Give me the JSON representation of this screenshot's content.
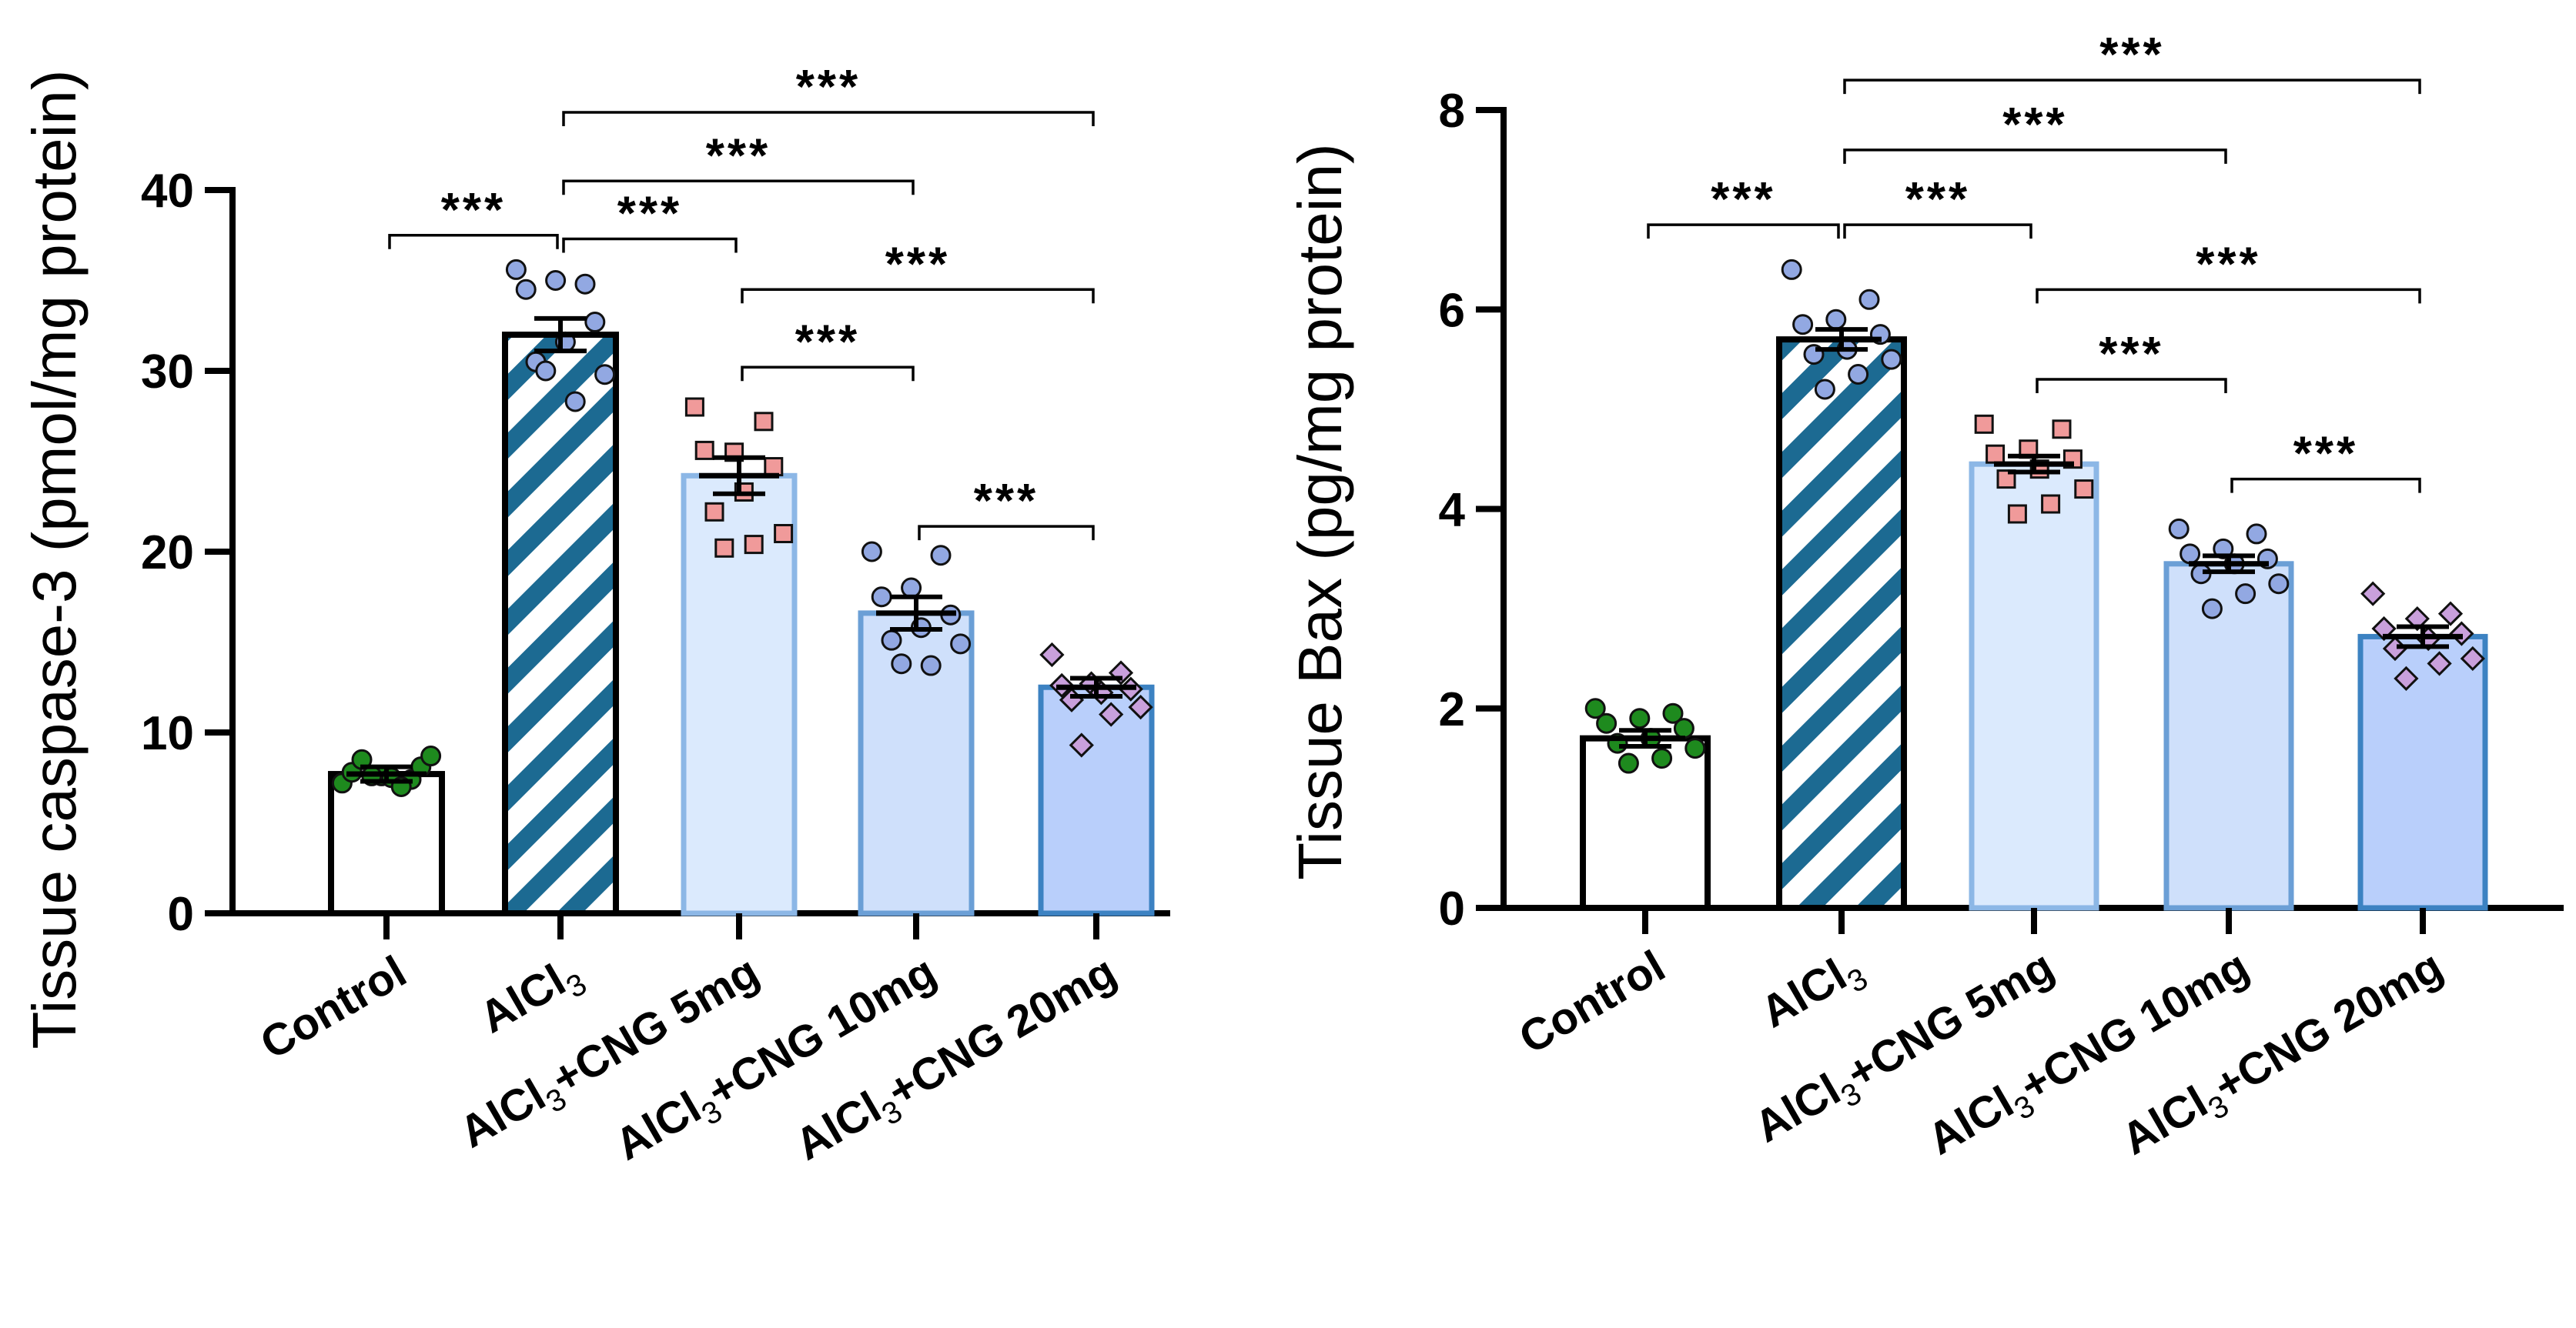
{
  "chart_data": [
    {
      "type": "bar",
      "title": "",
      "xlabel": "",
      "ylabel": "Tissue caspase-3 (pmol/mg protein)",
      "ylim": [
        0,
        40
      ],
      "yticks": [
        "0",
        "10",
        "20",
        "30",
        "40"
      ],
      "grid": false,
      "categories": [
        {
          "base": "Control",
          "sub": "",
          "rest": ""
        },
        {
          "base": "AlCl",
          "sub": "3",
          "rest": ""
        },
        {
          "base": "AlCl",
          "sub": "3",
          "rest": "+CNG 5mg"
        },
        {
          "base": "AlCl",
          "sub": "3",
          "rest": "+CNG 10mg"
        },
        {
          "base": "AlCl",
          "sub": "3",
          "rest": "+CNG 20mg"
        }
      ],
      "values": [
        7.7,
        32.0,
        24.2,
        16.6,
        12.5
      ],
      "sem": [
        0.4,
        0.9,
        1.0,
        0.9,
        0.5
      ],
      "points": [
        [
          7.2,
          7.4,
          7.6,
          7.8,
          8.1,
          7.5,
          8.5,
          8.7,
          7.0,
          7.6
        ],
        [
          35.6,
          34.8,
          35.0,
          34.5,
          32.7,
          31.6,
          30.5,
          29.8,
          28.3,
          30.0
        ],
        [
          28.0,
          27.2,
          25.5,
          25.6,
          24.7,
          23.3,
          22.2,
          21.0,
          20.4,
          20.2
        ],
        [
          20.0,
          19.8,
          18.0,
          17.5,
          16.5,
          15.8,
          15.1,
          14.9,
          13.7,
          13.8
        ],
        [
          14.3,
          13.3,
          12.7,
          12.6,
          12.4,
          12.2,
          11.8,
          11.4,
          11.0,
          9.3
        ]
      ],
      "styles": [
        {
          "fill": "#ffffff",
          "stroke": "#000000",
          "marker": "circle",
          "marker_fill": "#1e8a1e"
        },
        {
          "fill": "#ffffff",
          "stroke": "#000000",
          "hatch": "#1c6a92",
          "marker": "circle",
          "marker_fill": "#92a8e2"
        },
        {
          "fill": "#dbeafd",
          "stroke": "#8cb7e6",
          "marker": "square",
          "marker_fill": "#f09a9a"
        },
        {
          "fill": "#cfe0fb",
          "stroke": "#6b9fd6",
          "marker": "circle",
          "marker_fill": "#92a8e2"
        },
        {
          "fill": "#b9cffb",
          "stroke": "#3c82c2",
          "marker": "diamond",
          "marker_fill": "#c9a0dc"
        }
      ],
      "comparisons": [
        {
          "from": 0,
          "to": 1,
          "y": 37.5,
          "label": "***"
        },
        {
          "from": 1,
          "to": 2,
          "y": 37.3,
          "label": "***"
        },
        {
          "from": 1,
          "to": 3,
          "y": 40.5,
          "label": "***"
        },
        {
          "from": 1,
          "to": 4,
          "y": 44.3,
          "label": "***"
        },
        {
          "from": 2,
          "to": 4,
          "y": 34.5,
          "label": "***"
        },
        {
          "from": 2,
          "to": 3,
          "y": 30.2,
          "label": "***"
        },
        {
          "from": 3,
          "to": 4,
          "y": 21.4,
          "label": "***"
        }
      ]
    },
    {
      "type": "bar",
      "title": "",
      "xlabel": "",
      "ylabel": "Tissue Bax (pg/mg protein)",
      "ylim": [
        0,
        8
      ],
      "yticks": [
        "0",
        "2",
        "4",
        "6",
        "8"
      ],
      "grid": false,
      "categories": [
        {
          "base": "Control",
          "sub": "",
          "rest": ""
        },
        {
          "base": "AlCl",
          "sub": "3",
          "rest": ""
        },
        {
          "base": "AlCl",
          "sub": "3",
          "rest": "+CNG 5mg"
        },
        {
          "base": "AlCl",
          "sub": "3",
          "rest": "+CNG 10mg"
        },
        {
          "base": "AlCl",
          "sub": "3",
          "rest": "+CNG 20mg"
        }
      ],
      "values": [
        1.7,
        5.7,
        4.45,
        3.45,
        2.72
      ],
      "sem": [
        0.08,
        0.1,
        0.08,
        0.08,
        0.1
      ],
      "points": [
        [
          2.0,
          1.95,
          1.9,
          1.85,
          1.8,
          1.7,
          1.65,
          1.6,
          1.5,
          1.45
        ],
        [
          6.4,
          6.1,
          5.9,
          5.85,
          5.75,
          5.6,
          5.55,
          5.5,
          5.35,
          5.2
        ],
        [
          4.85,
          4.8,
          4.6,
          4.55,
          4.5,
          4.4,
          4.3,
          4.2,
          4.05,
          3.95
        ],
        [
          3.8,
          3.75,
          3.6,
          3.55,
          3.5,
          3.45,
          3.35,
          3.25,
          3.15,
          3.0
        ],
        [
          3.15,
          2.95,
          2.9,
          2.8,
          2.75,
          2.7,
          2.6,
          2.5,
          2.45,
          2.3
        ]
      ],
      "styles": [
        {
          "fill": "#ffffff",
          "stroke": "#000000",
          "marker": "circle",
          "marker_fill": "#1e8a1e"
        },
        {
          "fill": "#ffffff",
          "stroke": "#000000",
          "hatch": "#1c6a92",
          "marker": "circle",
          "marker_fill": "#92a8e2"
        },
        {
          "fill": "#dbeafd",
          "stroke": "#8cb7e6",
          "marker": "square",
          "marker_fill": "#f09a9a"
        },
        {
          "fill": "#cfe0fb",
          "stroke": "#6b9fd6",
          "marker": "circle",
          "marker_fill": "#92a8e2"
        },
        {
          "fill": "#b9cffb",
          "stroke": "#3c82c2",
          "marker": "diamond",
          "marker_fill": "#c9a0dc"
        }
      ],
      "comparisons": [
        {
          "from": 0,
          "to": 1,
          "y": 6.85,
          "label": "***"
        },
        {
          "from": 1,
          "to": 2,
          "y": 6.85,
          "label": "***"
        },
        {
          "from": 1,
          "to": 3,
          "y": 7.6,
          "label": "***"
        },
        {
          "from": 1,
          "to": 4,
          "y": 8.3,
          "label": "***"
        },
        {
          "from": 2,
          "to": 4,
          "y": 6.2,
          "label": "***"
        },
        {
          "from": 2,
          "to": 3,
          "y": 5.3,
          "label": "***"
        },
        {
          "from": 3,
          "to": 4,
          "y": 4.3,
          "label": "***"
        }
      ]
    }
  ]
}
